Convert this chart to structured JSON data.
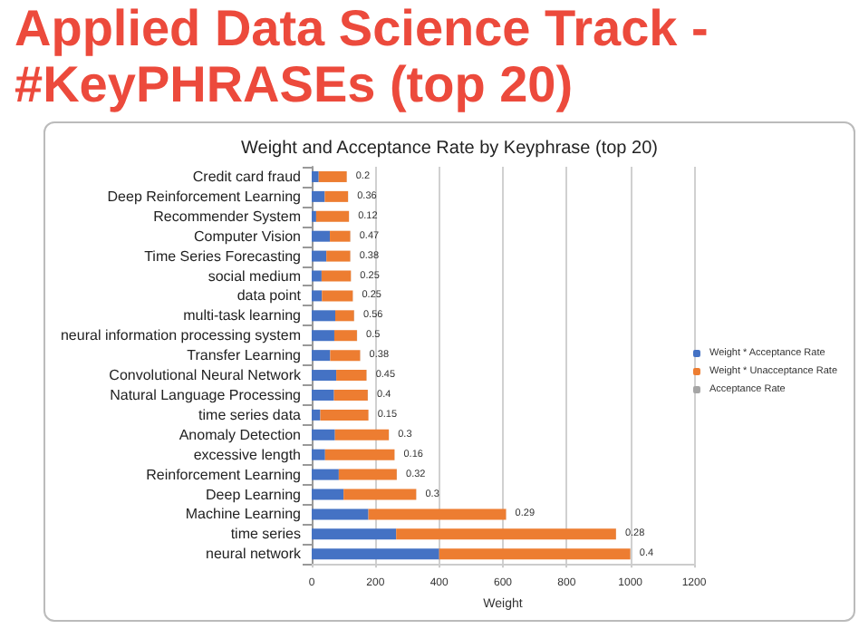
{
  "chart_data": {
    "type": "bar",
    "orientation": "horizontal",
    "stacked": true,
    "title": "Applied Data Science Track - #KeyPHRASEs (top 20)",
    "subtitle": "Weight and Acceptance Rate by Keyphrase (top 20)",
    "xlabel": "Weight",
    "categories": [
      "Credit card fraud",
      "Deep Reinforcement Learning",
      "Recommender System",
      "Computer Vision",
      "Time Series Forecasting",
      "social medium",
      "data point",
      "multi-task learning",
      "neural information processing system",
      "Transfer Learning",
      "Convolutional Neural Network",
      "Natural Language Processing",
      "time series data",
      "Anomaly Detection",
      "excessive length",
      "Reinforcement Learning",
      "Deep Learning",
      "Machine Learning",
      "time series",
      "neural network"
    ],
    "series": [
      {
        "name": "Weight * Acceptance Rate",
        "color": "#4472c4",
        "values": [
          22,
          41,
          14,
          57,
          46,
          31,
          32,
          74,
          71,
          58,
          77,
          70,
          27,
          73,
          42,
          85,
          100,
          178,
          265,
          400
        ]
      },
      {
        "name": "Weight * Unacceptance Rate",
        "color": "#ed7d31",
        "values": [
          88,
          73,
          103,
          64,
          75,
          92,
          97,
          59,
          71,
          94,
          95,
          106,
          151,
          169,
          218,
          182,
          228,
          432,
          690,
          600
        ]
      },
      {
        "name": "Acceptance Rate",
        "color": "#a5a5a5",
        "values": [
          0.2,
          0.36,
          0.12,
          0.47,
          0.38,
          0.25,
          0.25,
          0.56,
          0.5,
          0.38,
          0.45,
          0.4,
          0.15,
          0.3,
          0.16,
          0.32,
          0.3,
          0.29,
          0.28,
          0.4
        ],
        "value_labels": [
          "0.2",
          "0.36",
          "0.12",
          "0.47",
          "0.38",
          "0.25",
          "0.25",
          "0.56",
          "0.5",
          "0.38",
          "0.45",
          "0.4",
          "0.15",
          "0.3",
          "0.16",
          "0.32",
          "0.3",
          "0.29",
          "0.28",
          "0.4"
        ]
      }
    ],
    "xlim": [
      0,
      1200
    ],
    "xticks": [
      0,
      200,
      400,
      600,
      800,
      1000,
      1200
    ],
    "grid": "x",
    "legend": "right"
  }
}
